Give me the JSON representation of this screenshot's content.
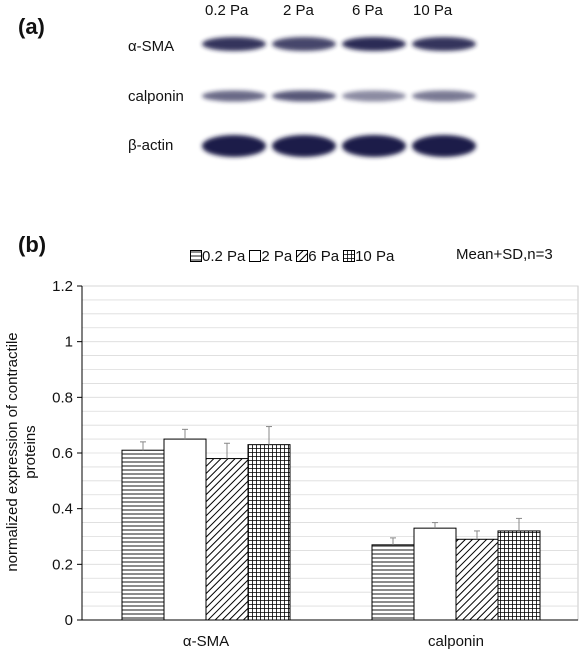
{
  "panel_a": {
    "label": "(a)",
    "lanes": [
      "0.2 Pa",
      "2 Pa",
      "6 Pa",
      "10 Pa"
    ],
    "rows": [
      "α-SMA",
      "calponin",
      "β-actin"
    ],
    "band_intensity": [
      [
        0.85,
        0.75,
        0.9,
        0.85
      ],
      [
        0.55,
        0.65,
        0.35,
        0.45
      ],
      [
        1.0,
        1.0,
        1.0,
        1.0
      ]
    ]
  },
  "panel_b": {
    "label": "(b)",
    "note": "Mean+SD,n=3"
  },
  "chart_data": {
    "type": "bar",
    "categories": [
      "α-SMA",
      "calponin"
    ],
    "series": [
      {
        "name": "0.2 Pa",
        "pattern": "horizontal-lines",
        "values": [
          0.61,
          0.27
        ],
        "errors": [
          0.03,
          0.025
        ]
      },
      {
        "name": "2 Pa",
        "pattern": "solid-white",
        "values": [
          0.65,
          0.33
        ],
        "errors": [
          0.035,
          0.02
        ]
      },
      {
        "name": "6 Pa",
        "pattern": "diagonal-lines",
        "values": [
          0.58,
          0.29
        ],
        "errors": [
          0.055,
          0.03
        ]
      },
      {
        "name": "10 Pa",
        "pattern": "grid",
        "values": [
          0.63,
          0.32
        ],
        "errors": [
          0.065,
          0.045
        ]
      }
    ],
    "ylabel_line1": "normalized expression of contractile",
    "ylabel_line2": "proteins",
    "ylim": [
      0,
      1.2
    ],
    "yticks": [
      "0",
      "0.2",
      "0.4",
      "0.6",
      "0.8",
      "1",
      "1.2"
    ],
    "grid": true,
    "legend_position": "top"
  }
}
